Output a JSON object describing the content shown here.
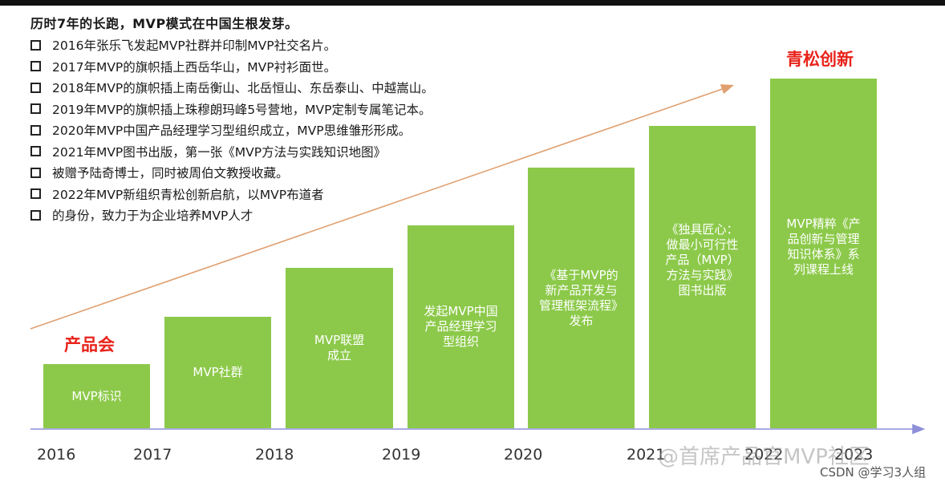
{
  "title": "历时7年的长跑，MVP模式在中国生根发芽。",
  "history_items": [
    "2016年张乐飞发起MVP社群并印制MVP社交名片。",
    "2017年MVP的旗帜插上西岳华山，MVP衬衫面世。",
    "2018年MVP的旗帜插上南岳衡山、北岳恒山、东岳泰山、中越嵩山。",
    "2019年MVP的旗帜插上珠穆朗玛峰5号营地，MVP定制专属笔记本。",
    "2020年MVP中国产品经理学习型组织成立，MVP思维雏形形成。",
    "2021年MVP图书出版，第一张《MVP方法与实践知识地图》",
    "被赠予陆奇博士，同时被周伯文教授收藏。",
    "2022年MVP新组织青松创新启航，以MVP布道者",
    "的身份，致力于为企业培养MVP人才"
  ],
  "callouts": {
    "start": "产品会",
    "end": "青松创新"
  },
  "bars": [
    {
      "text": "MVP标识"
    },
    {
      "text": "MVP社群"
    },
    {
      "text": "MVP联盟\n成立"
    },
    {
      "text": "发起MVP中国\n产品经理学习\n型组织"
    },
    {
      "text": "《基于MVP的\n新产品开发与\n管理框架流程》\n发布"
    },
    {
      "text": "《独具匠心：\n做最小可行性\n产品（MVP）\n方法与实践》\n图书出版"
    },
    {
      "text": "MVP精粹《产\n品创新与管理\n知识体系》系\n列课程上线"
    }
  ],
  "years": [
    "2016",
    "2017",
    "2018",
    "2019",
    "2020",
    "2021",
    "2022",
    "2023"
  ],
  "colors": {
    "bar": "#8cc94a",
    "callout": "#e8231b",
    "arrow": "#e0a070",
    "axis": "#8d8fd8"
  },
  "watermarks": {
    "center": "@首席产品官MVP社区",
    "corner": "CSDN @学习3人组"
  }
}
